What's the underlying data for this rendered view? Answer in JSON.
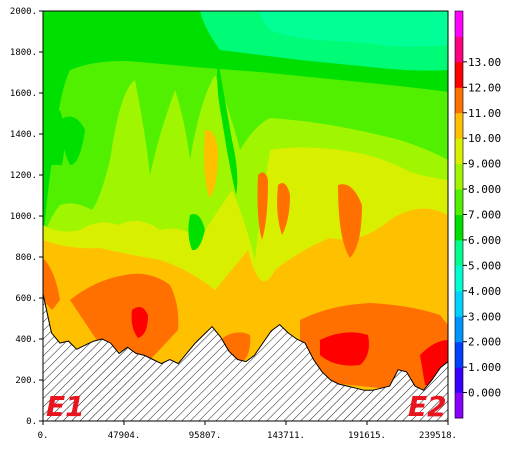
{
  "chart_data": {
    "type": "heatmap",
    "title": "",
    "xlabel": "",
    "ylabel": "",
    "x_ticks": [
      "0.",
      "47904.",
      "95807.",
      "143711.",
      "191615.",
      "239518."
    ],
    "x_tick_values": [
      0,
      47904,
      95807,
      143711,
      191615,
      239518
    ],
    "y_ticks": [
      "0.",
      "200.",
      "400.",
      "600.",
      "800.",
      "1000.",
      "1200.",
      "1400.",
      "1600.",
      "1800.",
      "2000."
    ],
    "y_tick_values": [
      0,
      200,
      400,
      600,
      800,
      1000,
      1200,
      1400,
      1600,
      1800,
      2000
    ],
    "xlim": [
      0,
      239518
    ],
    "ylim": [
      0,
      2000
    ],
    "colorbar": {
      "labels": [
        "0.000",
        "1.000",
        "2.000",
        "3.000",
        "4.000",
        "5.000",
        "6.000",
        "7.000",
        "8.000",
        "9.000",
        "10.00",
        "11.00",
        "12.00",
        "13.00"
      ],
      "colors": [
        "#8a00ff",
        "#3a00ff",
        "#0040ff",
        "#0094ff",
        "#00d2ff",
        "#00ffd0",
        "#00ff8c",
        "#00e000",
        "#50f000",
        "#a0f500",
        "#d8f000",
        "#ffc000",
        "#ff7000",
        "#ff0000",
        "#ff0080",
        "#ff00ff"
      ]
    },
    "shading_levels": [
      {
        "level": 6,
        "color": "#00e000"
      },
      {
        "level": 7,
        "color": "#50f000"
      },
      {
        "level": 8,
        "color": "#a0f500"
      },
      {
        "level": 9,
        "color": "#d8f000"
      },
      {
        "level": 10,
        "color": "#ffc000"
      },
      {
        "level": 11,
        "color": "#ff7000"
      },
      {
        "level": 12,
        "color": "#ff0000"
      }
    ],
    "terrain_profile": [
      [
        0,
        620
      ],
      [
        5000,
        430
      ],
      [
        10000,
        380
      ],
      [
        15000,
        390
      ],
      [
        20000,
        350
      ],
      [
        25000,
        370
      ],
      [
        30000,
        390
      ],
      [
        35000,
        400
      ],
      [
        40000,
        380
      ],
      [
        45000,
        330
      ],
      [
        50000,
        360
      ],
      [
        55000,
        330
      ],
      [
        60000,
        320
      ],
      [
        65000,
        300
      ],
      [
        70000,
        280
      ],
      [
        75000,
        300
      ],
      [
        80000,
        280
      ],
      [
        85000,
        330
      ],
      [
        90000,
        380
      ],
      [
        95000,
        420
      ],
      [
        100000,
        460
      ],
      [
        105000,
        410
      ],
      [
        110000,
        340
      ],
      [
        115000,
        300
      ],
      [
        120000,
        290
      ],
      [
        125000,
        320
      ],
      [
        130000,
        380
      ],
      [
        135000,
        440
      ],
      [
        140000,
        470
      ],
      [
        145000,
        430
      ],
      [
        150000,
        400
      ],
      [
        155000,
        380
      ],
      [
        160000,
        300
      ],
      [
        165000,
        240
      ],
      [
        170000,
        200
      ],
      [
        175000,
        180
      ],
      [
        180000,
        170
      ],
      [
        185000,
        160
      ],
      [
        190000,
        150
      ],
      [
        195000,
        150
      ],
      [
        200000,
        160
      ],
      [
        205000,
        170
      ],
      [
        210000,
        250
      ],
      [
        215000,
        240
      ],
      [
        220000,
        170
      ],
      [
        225000,
        150
      ],
      [
        230000,
        200
      ],
      [
        235000,
        260
      ],
      [
        239518,
        290
      ]
    ],
    "end_labels": [
      "E1",
      "E2"
    ]
  }
}
